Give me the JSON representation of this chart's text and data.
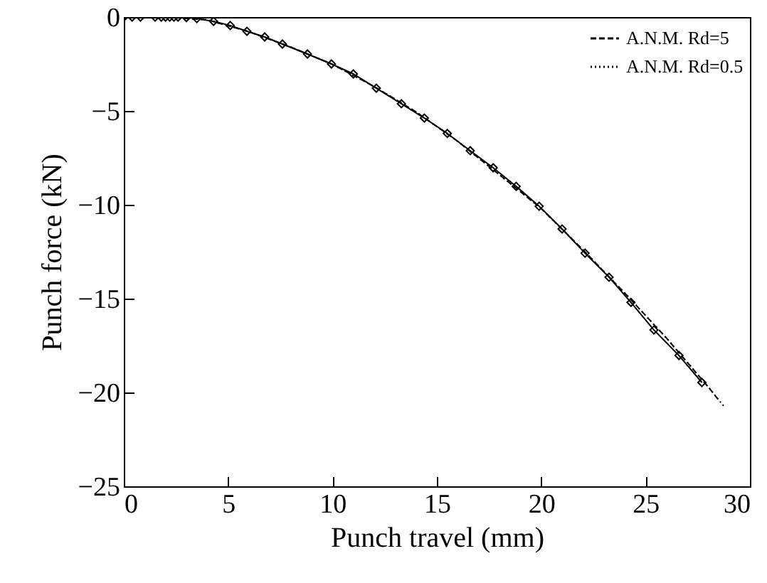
{
  "chart_data": {
    "type": "line",
    "xlabel": "Punch travel (mm)",
    "ylabel": "Punch force (kN)",
    "xlim": [
      0,
      30
    ],
    "ylim": [
      -25,
      0
    ],
    "xticks": [
      0,
      5,
      10,
      15,
      20,
      25,
      30
    ],
    "yticks": [
      -25,
      -20,
      -15,
      -10,
      -5,
      0
    ],
    "grid": false,
    "legend": "top right",
    "series": [
      {
        "color": "#000000",
        "marker": "diamond",
        "line_style": "solid",
        "x": [
          0,
          0.4,
          0.8,
          1.5,
          1.8,
          2.0,
          2.2,
          2.4,
          2.6,
          3.0,
          3.5,
          4.3,
          5.1,
          5.9,
          6.75,
          7.6,
          8.8,
          9.95,
          11.0,
          12.1,
          13.3,
          14.4,
          15.5,
          16.6,
          17.7,
          18.8,
          19.9,
          21.0,
          22.1,
          23.25,
          24.3,
          25.4,
          26.6,
          27.7
        ],
        "values": [
          0,
          0,
          0,
          0,
          0,
          0,
          0,
          0,
          0,
          -0.03,
          -0.08,
          -0.23,
          -0.45,
          -0.76,
          -1.06,
          -1.44,
          -1.97,
          -2.5,
          -3.03,
          -3.79,
          -4.62,
          -5.38,
          -6.2,
          -7.12,
          -8.03,
          -9.02,
          -10.08,
          -11.29,
          -12.58,
          -13.86,
          -15.2,
          -16.67,
          -18.03,
          -19.47
        ]
      },
      {
        "name": "A.N.M. Rd=5",
        "color": "#000000",
        "marker": "none",
        "line_style": "dashed",
        "x": [
          0,
          2,
          4,
          6,
          8,
          10,
          12,
          14,
          16,
          18,
          20,
          22,
          24,
          26,
          28,
          28.5
        ],
        "values": [
          0,
          0,
          -0.15,
          -0.78,
          -1.6,
          -2.52,
          -3.7,
          -5.05,
          -6.62,
          -8.4,
          -10.2,
          -12.4,
          -14.7,
          -17.1,
          -19.7,
          -20.4
        ]
      },
      {
        "name": "A.N.M. Rd=0.5",
        "color": "#000000",
        "marker": "none",
        "line_style": "dotted",
        "x": [
          0,
          2,
          4,
          6,
          8,
          10,
          12,
          14,
          16,
          18,
          20,
          22,
          24,
          26,
          28,
          28.8
        ],
        "values": [
          0,
          0,
          -0.15,
          -0.78,
          -1.6,
          -2.52,
          -3.7,
          -5.05,
          -6.62,
          -8.4,
          -10.2,
          -12.4,
          -14.7,
          -17.1,
          -19.7,
          -20.8
        ]
      }
    ]
  }
}
